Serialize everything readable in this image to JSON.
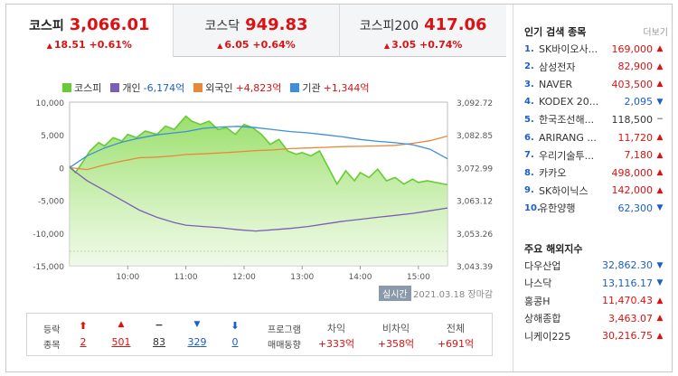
{
  "tabs": [
    {
      "name": "코스피",
      "value": "3,066.01",
      "change": "18.51 +0.61%",
      "active": true
    },
    {
      "name": "코스닥",
      "value": "949.83",
      "change": "6.05 +0.64%",
      "active": false
    },
    {
      "name": "코스피200",
      "value": "417.06",
      "change": "3.05 +0.74%",
      "active": false
    }
  ],
  "legend": {
    "kospi": "코스피",
    "individual": "개인",
    "individual_val": "-6,174억",
    "foreign": "외국인",
    "foreign_val": "+4,823억",
    "institution": "기관",
    "institution_val": "+1,344억"
  },
  "colors": {
    "kospi": "#66cc33",
    "individual": "#7b5fb5",
    "foreign": "#e8883a",
    "institution": "#3d8fd9",
    "up": "#dd1111",
    "down": "#1b5fc9"
  },
  "chart_data": {
    "type": "line",
    "x_ticks": [
      "10:00",
      "11:00",
      "12:00",
      "13:00",
      "14:00",
      "15:00"
    ],
    "y_left_ticks": [
      "10,000",
      "5,000",
      "0",
      "-5,000",
      "-10,000",
      "-15,000"
    ],
    "y_right_ticks": [
      "3,092.72",
      "3,082.85",
      "3,072.99",
      "3,063.12",
      "3,053.26",
      "3,043.39"
    ],
    "ylim_left": [
      -15000,
      10000
    ],
    "ylim_right": [
      3043.39,
      3092.72
    ],
    "x_range": [
      9.0,
      15.5
    ],
    "series": [
      {
        "name": "코스피",
        "axis": "right",
        "x": [
          9.0,
          9.1,
          9.2,
          9.35,
          9.5,
          9.6,
          9.75,
          9.9,
          10.0,
          10.15,
          10.3,
          10.5,
          10.65,
          10.8,
          10.95,
          11.0,
          11.1,
          11.25,
          11.4,
          11.55,
          11.7,
          11.85,
          12.0,
          12.15,
          12.3,
          12.45,
          12.6,
          12.75,
          12.9,
          13.0,
          13.15,
          13.3,
          13.45,
          13.6,
          13.75,
          13.9,
          14.0,
          14.15,
          14.3,
          14.45,
          14.6,
          14.75,
          14.9,
          15.0,
          15.15,
          15.3,
          15.5
        ],
        "y": [
          3073.5,
          3071.5,
          3074,
          3078,
          3080.5,
          3079.5,
          3082,
          3081,
          3083,
          3082,
          3084,
          3083,
          3085.5,
          3084.5,
          3087.5,
          3088.5,
          3087,
          3086,
          3087,
          3084.5,
          3085,
          3083,
          3086,
          3085,
          3083,
          3080,
          3081.5,
          3078,
          3077,
          3077.5,
          3076.5,
          3078,
          3073,
          3068,
          3072,
          3069,
          3071.5,
          3070,
          3072.5,
          3069,
          3070,
          3068,
          3069.5,
          3068.5,
          3069,
          3068.5,
          3067.8
        ]
      },
      {
        "name": "개인",
        "axis": "left",
        "x": [
          9.0,
          9.3,
          9.6,
          9.9,
          10.2,
          10.5,
          10.8,
          11.0,
          11.3,
          11.6,
          11.9,
          12.2,
          12.5,
          12.8,
          13.1,
          13.4,
          13.7,
          14.0,
          14.3,
          14.6,
          14.9,
          15.2,
          15.5
        ],
        "y": [
          0,
          -2000,
          -3500,
          -5000,
          -6500,
          -7600,
          -8400,
          -8800,
          -9000,
          -9200,
          -9500,
          -9700,
          -9500,
          -9300,
          -9000,
          -8600,
          -8200,
          -7900,
          -7600,
          -7300,
          -7000,
          -6600,
          -6174
        ]
      },
      {
        "name": "외국인",
        "axis": "left",
        "x": [
          9.0,
          9.3,
          9.6,
          9.9,
          10.2,
          10.5,
          10.8,
          11.0,
          11.3,
          11.6,
          11.9,
          12.2,
          12.5,
          12.8,
          13.1,
          13.4,
          13.7,
          14.0,
          14.3,
          14.6,
          14.9,
          15.2,
          15.5
        ],
        "y": [
          0,
          -300,
          400,
          1000,
          1500,
          1600,
          1800,
          2000,
          2100,
          2250,
          2400,
          2600,
          2700,
          2900,
          3000,
          3100,
          3200,
          3250,
          3300,
          3400,
          3700,
          4100,
          4823
        ]
      },
      {
        "name": "기관",
        "axis": "left",
        "x": [
          9.0,
          9.3,
          9.6,
          9.9,
          10.2,
          10.5,
          10.8,
          11.0,
          11.3,
          11.6,
          11.9,
          12.2,
          12.5,
          12.8,
          13.1,
          13.4,
          13.7,
          14.0,
          14.3,
          14.6,
          14.9,
          15.2,
          15.5
        ],
        "y": [
          0,
          1800,
          3000,
          3900,
          4500,
          5000,
          5300,
          5500,
          6000,
          6200,
          6300,
          6100,
          5800,
          5500,
          5300,
          5000,
          4700,
          4300,
          4000,
          3800,
          3500,
          2800,
          1344
        ]
      }
    ]
  },
  "live_label": "실시간",
  "date_label": "2021.03.18 장마감",
  "stats": {
    "label_top": "등락",
    "label_bottom": "종목",
    "upper_limit": "2",
    "rise": "501",
    "unchanged": "83",
    "fall": "329",
    "lower_limit": "0",
    "program_top": "프로그램",
    "program_bottom": "매매동향",
    "col1_head": "차익",
    "col1_val": "+333억",
    "col2_head": "비차익",
    "col2_val": "+358억",
    "col3_head": "전체",
    "col3_val": "+691억"
  },
  "popular": {
    "title": "인기 검색 종목",
    "more": "더보기",
    "items": [
      {
        "rank": "1.",
        "name": "SK바이오사...",
        "price": "169,000",
        "dir": "up"
      },
      {
        "rank": "2.",
        "name": "삼성전자",
        "price": "82,900",
        "dir": "up"
      },
      {
        "rank": "3.",
        "name": "NAVER",
        "price": "403,500",
        "dir": "up"
      },
      {
        "rank": "4.",
        "name": "KODEX 20...",
        "price": "2,095",
        "dir": "down"
      },
      {
        "rank": "5.",
        "name": "한국조선해...",
        "price": "118,500",
        "dir": "flat"
      },
      {
        "rank": "6.",
        "name": "ARIRANG ...",
        "price": "11,720",
        "dir": "up"
      },
      {
        "rank": "7.",
        "name": "우리기술투...",
        "price": "7,180",
        "dir": "up"
      },
      {
        "rank": "8.",
        "name": "카카오",
        "price": "498,000",
        "dir": "up"
      },
      {
        "rank": "9.",
        "name": "SK하이닉스",
        "price": "142,000",
        "dir": "up"
      },
      {
        "rank": "10.",
        "name": "유한양행",
        "price": "62,300",
        "dir": "down"
      }
    ]
  },
  "overseas": {
    "title": "주요 해외지수",
    "items": [
      {
        "name": "다우산업",
        "price": "32,862.30",
        "dir": "down"
      },
      {
        "name": "나스닥",
        "price": "13,116.17",
        "dir": "down"
      },
      {
        "name": "홍콩H",
        "price": "11,470.43",
        "dir": "up"
      },
      {
        "name": "상해종합",
        "price": "3,463.07",
        "dir": "up"
      },
      {
        "name": "니케이225",
        "price": "30,216.75",
        "dir": "up"
      }
    ]
  }
}
